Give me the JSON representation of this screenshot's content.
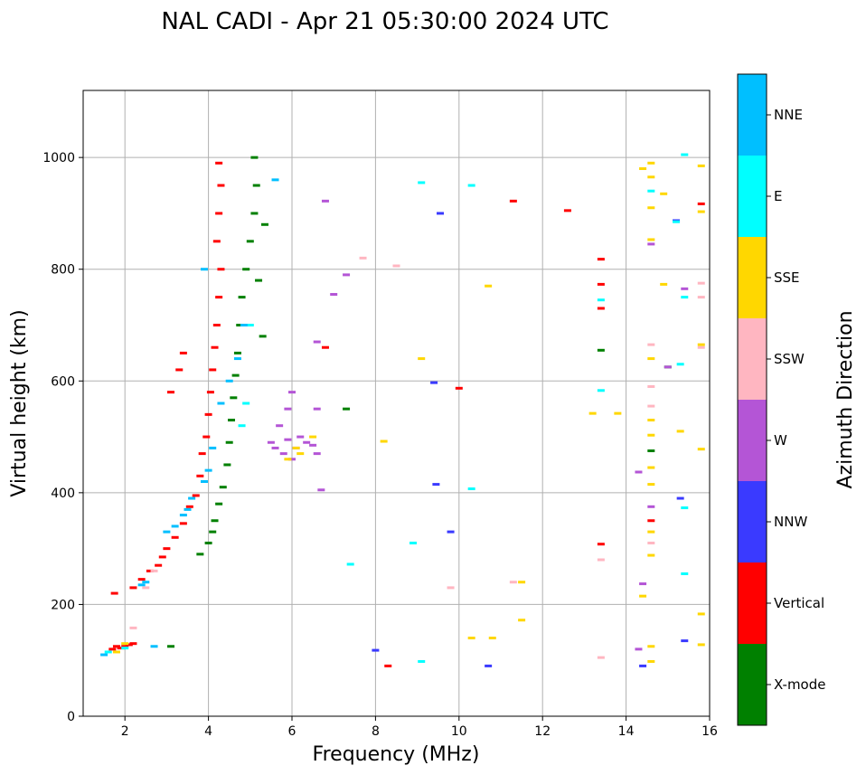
{
  "chart_data": {
    "type": "scatter",
    "title": "NAL CADI - Apr 21 05:30:00 2024 UTC",
    "xlabel": "Frequency (MHz)",
    "ylabel": "Virtual height (km)",
    "xlim": [
      1,
      16
    ],
    "ylim": [
      0,
      1120
    ],
    "xticks": [
      "2",
      "4",
      "6",
      "8",
      "10",
      "12",
      "14",
      "16"
    ],
    "yticks": [
      "0",
      "200",
      "400",
      "600",
      "800",
      "1000"
    ],
    "grid": true,
    "colorbar": {
      "label": "Azimuth Direction",
      "categories": [
        {
          "name": "X-mode",
          "color": "#008000"
        },
        {
          "name": "Vertical",
          "color": "#ff0000"
        },
        {
          "name": "NNW",
          "color": "#3a3aff"
        },
        {
          "name": "W",
          "color": "#b455d6"
        },
        {
          "name": "SSW",
          "color": "#ffb6c1"
        },
        {
          "name": "SSE",
          "color": "#ffd700"
        },
        {
          "name": "E",
          "color": "#00ffff"
        },
        {
          "name": "NNE",
          "color": "#00bfff"
        }
      ]
    },
    "series": [
      {
        "name": "Vertical",
        "points": [
          [
            1.7,
            120
          ],
          [
            1.8,
            125
          ],
          [
            1.9,
            122
          ],
          [
            2.0,
            125
          ],
          [
            2.1,
            128
          ],
          [
            2.2,
            130
          ],
          [
            1.75,
            220
          ],
          [
            2.2,
            230
          ],
          [
            2.4,
            245
          ],
          [
            2.6,
            260
          ],
          [
            2.8,
            270
          ],
          [
            2.9,
            285
          ],
          [
            3.0,
            300
          ],
          [
            3.2,
            320
          ],
          [
            3.4,
            345
          ],
          [
            3.55,
            375
          ],
          [
            3.7,
            395
          ],
          [
            3.8,
            430
          ],
          [
            3.85,
            470
          ],
          [
            3.95,
            500
          ],
          [
            4.0,
            540
          ],
          [
            4.05,
            580
          ],
          [
            4.1,
            620
          ],
          [
            4.15,
            660
          ],
          [
            4.2,
            700
          ],
          [
            4.25,
            750
          ],
          [
            4.3,
            800
          ],
          [
            4.2,
            850
          ],
          [
            4.25,
            900
          ],
          [
            4.3,
            950
          ],
          [
            4.25,
            990
          ],
          [
            3.4,
            650
          ],
          [
            3.1,
            580
          ],
          [
            3.3,
            620
          ],
          [
            6.8,
            660
          ],
          [
            8.3,
            90
          ],
          [
            10.0,
            587
          ],
          [
            11.3,
            922
          ],
          [
            12.6,
            905
          ],
          [
            13.4,
            818
          ],
          [
            13.4,
            773
          ],
          [
            13.4,
            730
          ],
          [
            13.4,
            308
          ],
          [
            14.6,
            350
          ],
          [
            15.8,
            917
          ]
        ]
      },
      {
        "name": "X-mode",
        "points": [
          [
            3.1,
            125
          ],
          [
            3.8,
            290
          ],
          [
            4.0,
            310
          ],
          [
            4.1,
            330
          ],
          [
            4.15,
            350
          ],
          [
            4.25,
            380
          ],
          [
            4.35,
            410
          ],
          [
            4.45,
            450
          ],
          [
            4.5,
            490
          ],
          [
            4.55,
            530
          ],
          [
            4.6,
            570
          ],
          [
            4.65,
            610
          ],
          [
            4.7,
            650
          ],
          [
            4.75,
            700
          ],
          [
            4.8,
            750
          ],
          [
            4.9,
            800
          ],
          [
            5.0,
            850
          ],
          [
            5.1,
            900
          ],
          [
            5.15,
            950
          ],
          [
            5.1,
            1000
          ],
          [
            5.3,
            680
          ],
          [
            5.2,
            780
          ],
          [
            5.35,
            880
          ],
          [
            7.3,
            550
          ],
          [
            13.4,
            655
          ],
          [
            14.6,
            475
          ],
          [
            15.0,
            625
          ]
        ]
      },
      {
        "name": "NNW",
        "points": [
          [
            8.0,
            118
          ],
          [
            9.4,
            597
          ],
          [
            9.45,
            415
          ],
          [
            9.55,
            900
          ],
          [
            9.8,
            330
          ],
          [
            10.7,
            90
          ],
          [
            14.4,
            90
          ],
          [
            15.2,
            887
          ],
          [
            15.3,
            390
          ],
          [
            15.4,
            135
          ]
        ]
      },
      {
        "name": "W",
        "points": [
          [
            5.5,
            490
          ],
          [
            5.6,
            480
          ],
          [
            5.8,
            470
          ],
          [
            5.9,
            495
          ],
          [
            6.0,
            460
          ],
          [
            6.1,
            480
          ],
          [
            6.2,
            500
          ],
          [
            6.35,
            490
          ],
          [
            6.5,
            485
          ],
          [
            6.6,
            470
          ],
          [
            5.7,
            520
          ],
          [
            5.9,
            550
          ],
          [
            6.0,
            580
          ],
          [
            6.6,
            550
          ],
          [
            6.7,
            405
          ],
          [
            6.6,
            670
          ],
          [
            6.8,
            922
          ],
          [
            7.0,
            755
          ],
          [
            7.3,
            790
          ],
          [
            14.3,
            437
          ],
          [
            14.4,
            237
          ],
          [
            14.3,
            120
          ],
          [
            14.6,
            845
          ],
          [
            14.6,
            375
          ],
          [
            15.0,
            625
          ],
          [
            15.4,
            765
          ]
        ]
      },
      {
        "name": "SSW",
        "points": [
          [
            2.2,
            158
          ],
          [
            2.5,
            230
          ],
          [
            2.7,
            260
          ],
          [
            7.7,
            820
          ],
          [
            8.5,
            806
          ],
          [
            9.8,
            230
          ],
          [
            11.3,
            240
          ],
          [
            13.4,
            280
          ],
          [
            13.4,
            105
          ],
          [
            14.6,
            665
          ],
          [
            14.6,
            590
          ],
          [
            14.6,
            555
          ],
          [
            14.6,
            310
          ],
          [
            15.8,
            775
          ],
          [
            15.8,
            750
          ],
          [
            15.8,
            660
          ]
        ]
      },
      {
        "name": "SSE",
        "points": [
          [
            2.0,
            130
          ],
          [
            1.8,
            115
          ],
          [
            5.9,
            460
          ],
          [
            6.1,
            480
          ],
          [
            6.2,
            470
          ],
          [
            6.5,
            500
          ],
          [
            8.2,
            492
          ],
          [
            9.1,
            640
          ],
          [
            10.3,
            140
          ],
          [
            10.8,
            140
          ],
          [
            10.7,
            770
          ],
          [
            11.5,
            172
          ],
          [
            11.5,
            240
          ],
          [
            13.2,
            542
          ],
          [
            13.8,
            542
          ],
          [
            14.4,
            980
          ],
          [
            14.4,
            215
          ],
          [
            14.6,
            990
          ],
          [
            14.6,
            965
          ],
          [
            14.6,
            910
          ],
          [
            14.6,
            853
          ],
          [
            14.6,
            640
          ],
          [
            14.6,
            530
          ],
          [
            14.6,
            503
          ],
          [
            14.6,
            445
          ],
          [
            14.6,
            415
          ],
          [
            14.6,
            330
          ],
          [
            14.6,
            288
          ],
          [
            14.6,
            125
          ],
          [
            14.6,
            98
          ],
          [
            14.9,
            935
          ],
          [
            14.9,
            773
          ],
          [
            15.3,
            510
          ],
          [
            15.8,
            985
          ],
          [
            15.8,
            903
          ],
          [
            15.8,
            665
          ],
          [
            15.8,
            478
          ],
          [
            15.8,
            183
          ],
          [
            15.8,
            128
          ]
        ]
      },
      {
        "name": "E",
        "points": [
          [
            1.6,
            115
          ],
          [
            2.0,
            122
          ],
          [
            5.0,
            700
          ],
          [
            4.9,
            560
          ],
          [
            4.8,
            520
          ],
          [
            7.4,
            272
          ],
          [
            8.9,
            310
          ],
          [
            9.1,
            955
          ],
          [
            9.1,
            98
          ],
          [
            10.3,
            950
          ],
          [
            10.3,
            407
          ],
          [
            13.4,
            745
          ],
          [
            13.4,
            583
          ],
          [
            14.6,
            940
          ],
          [
            15.3,
            630
          ],
          [
            15.4,
            750
          ],
          [
            15.4,
            373
          ],
          [
            15.4,
            255
          ],
          [
            15.2,
            885
          ],
          [
            15.4,
            1005
          ]
        ]
      },
      {
        "name": "NNE",
        "points": [
          [
            1.5,
            110
          ],
          [
            2.4,
            235
          ],
          [
            2.5,
            240
          ],
          [
            2.7,
            125
          ],
          [
            3.0,
            330
          ],
          [
            3.2,
            340
          ],
          [
            3.4,
            360
          ],
          [
            3.5,
            370
          ],
          [
            3.6,
            390
          ],
          [
            3.9,
            420
          ],
          [
            4.0,
            440
          ],
          [
            4.1,
            480
          ],
          [
            4.3,
            560
          ],
          [
            4.5,
            600
          ],
          [
            4.7,
            640
          ],
          [
            4.85,
            700
          ],
          [
            3.9,
            800
          ],
          [
            5.6,
            960
          ]
        ]
      }
    ]
  }
}
